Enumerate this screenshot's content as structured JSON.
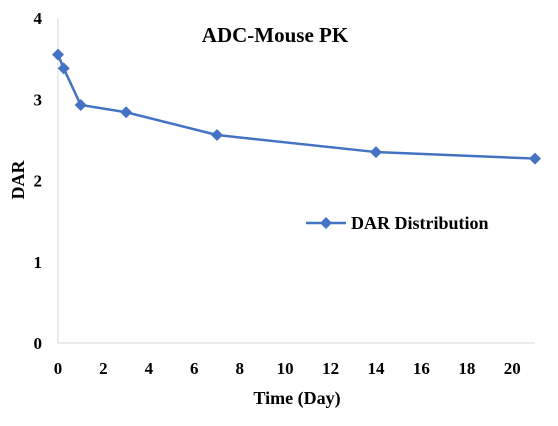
{
  "chart_data": {
    "type": "line",
    "title": "ADC-Mouse PK",
    "xlabel": "Time (Day)",
    "ylabel": "DAR",
    "xlim": [
      0,
      21
    ],
    "ylim": [
      0,
      4
    ],
    "x_ticks": [
      "0",
      "2",
      "4",
      "6",
      "8",
      "10",
      "12",
      "14",
      "16",
      "18",
      "20"
    ],
    "y_ticks": [
      "0",
      "1",
      "2",
      "3",
      "4"
    ],
    "grid": false,
    "legend_position": "right-middle",
    "series": [
      {
        "name": "DAR Distribution",
        "color": "#4472C4",
        "marker": "diamond",
        "x": [
          0,
          0.25,
          1,
          3,
          7,
          14,
          21
        ],
        "y": [
          3.55,
          3.38,
          2.93,
          2.84,
          2.56,
          2.35,
          2.27
        ]
      }
    ]
  }
}
